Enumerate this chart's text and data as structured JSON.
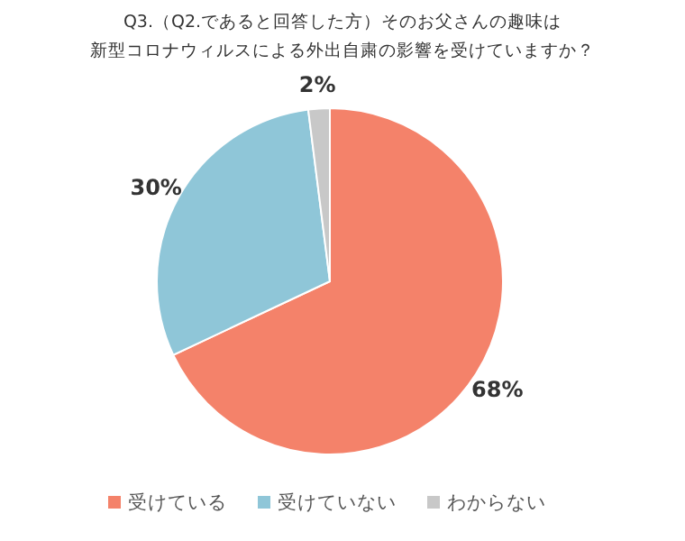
{
  "chart_data": {
    "type": "pie",
    "title": "Q3.（Q2.であると回答した方）そのお父さんの趣味は",
    "subtitle": "新型コロナウィルスによる外出自粛の影響を受けていますか？",
    "categories": [
      "受けている",
      "受けていない",
      "わからない"
    ],
    "values": [
      68,
      30,
      2
    ],
    "colors": [
      "#f4826a",
      "#8fc6d8",
      "#c8c8c8"
    ],
    "value_labels": [
      "68%",
      "30%",
      "2%"
    ],
    "legend": "bottom"
  }
}
